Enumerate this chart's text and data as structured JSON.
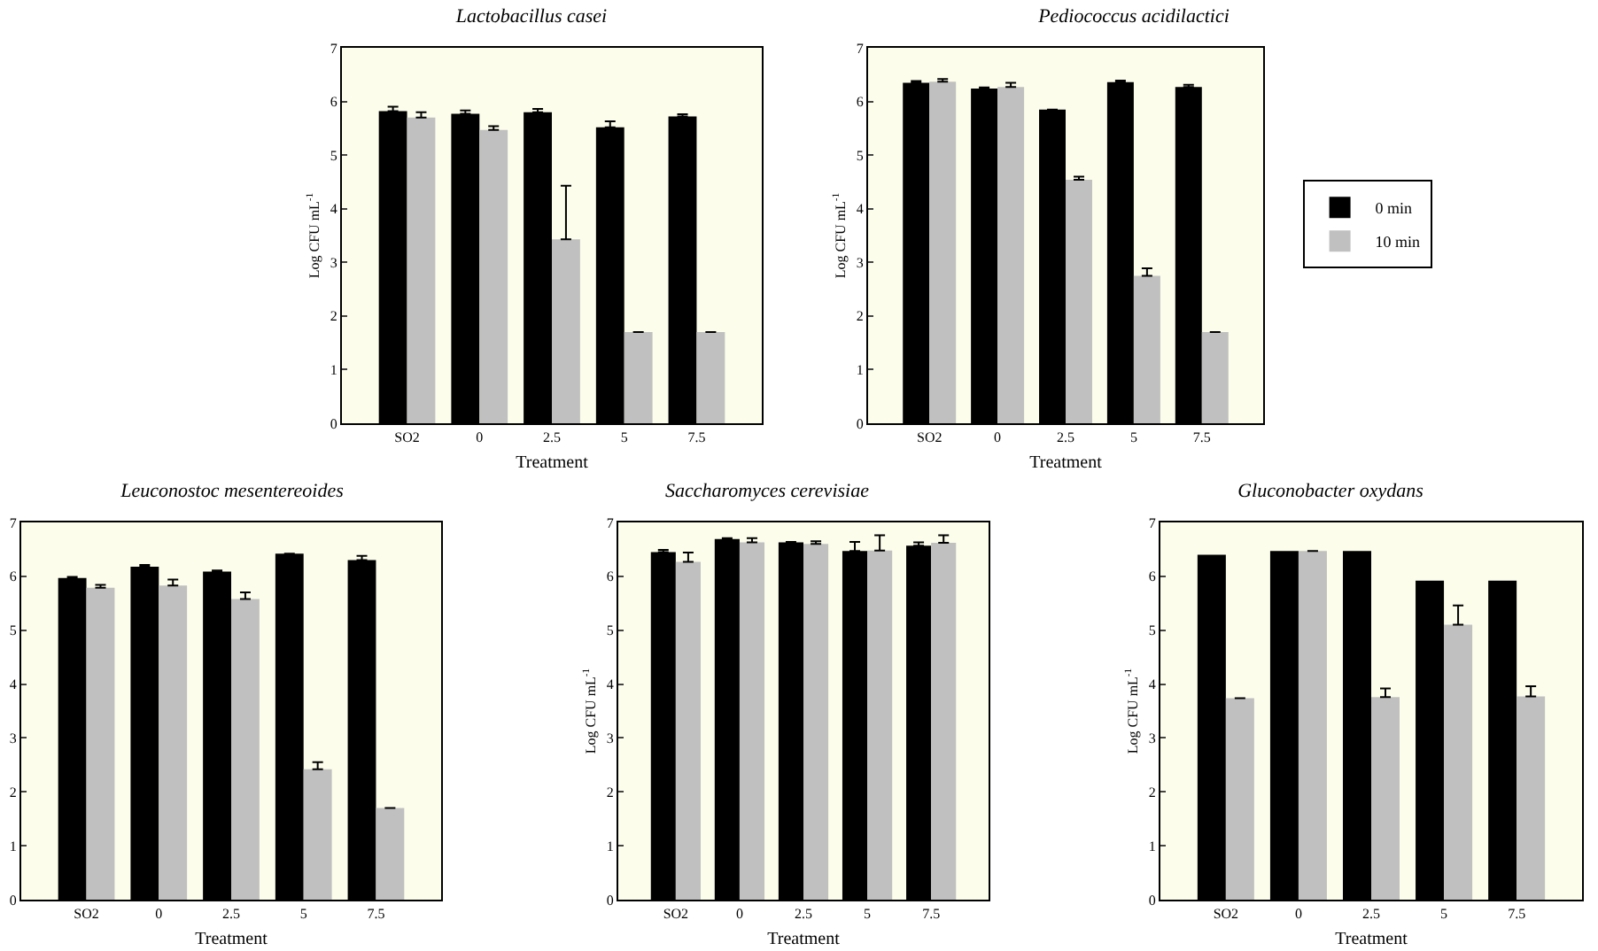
{
  "chart_data": [
    {
      "type": "bar",
      "title": "Lactobacillus casei",
      "xlabel": "Treatment",
      "ylabel": "Log CFU mL$^{-1}$",
      "categories": [
        "SO2",
        "0",
        "2.5",
        "5",
        "7.5"
      ],
      "ylim": [
        0,
        7
      ],
      "yticks": [
        0,
        1,
        2,
        3,
        4,
        5,
        6,
        7
      ],
      "legend": false,
      "series": [
        {
          "color": "#000000",
          "values": [
            5.82,
            5.77,
            5.8,
            5.52,
            5.72
          ],
          "errors": [
            [
              5.82,
              5.9
            ],
            [
              5.77,
              5.83
            ],
            [
              5.8,
              5.86
            ],
            [
              5.52,
              5.63
            ],
            [
              5.72,
              5.76
            ]
          ]
        },
        {
          "color": "#c0c0c0",
          "values": [
            5.7,
            5.47,
            3.43,
            1.7,
            1.7
          ],
          "errors": [
            [
              5.7,
              5.8
            ],
            [
              5.47,
              5.54
            ],
            [
              3.43,
              4.43
            ],
            null,
            null
          ]
        }
      ]
    },
    {
      "type": "bar",
      "title": "Pediococcus acidilactici",
      "xlabel": "Treatment",
      "ylabel": "Log CFU mL$^{-1}$",
      "categories": [
        "SO2",
        "0",
        "2.5",
        "5",
        "7.5"
      ],
      "ylim": [
        0,
        7
      ],
      "yticks": [
        0,
        1,
        2,
        3,
        4,
        5,
        6,
        7
      ],
      "legend": "right",
      "series": [
        {
          "name": "0 min",
          "color": "#000000",
          "values": [
            6.35,
            6.24,
            5.85,
            6.36,
            6.27
          ],
          "errors": [
            [
              6.35,
              6.38
            ],
            [
              6.24,
              6.26
            ],
            null,
            [
              6.36,
              6.39
            ],
            [
              6.27,
              6.31
            ]
          ]
        },
        {
          "name": "10 min",
          "color": "#c0c0c0",
          "values": [
            6.37,
            6.27,
            4.54,
            2.75,
            1.7
          ],
          "errors": [
            [
              6.37,
              6.42
            ],
            [
              6.27,
              6.35
            ],
            [
              4.54,
              4.6
            ],
            [
              2.75,
              2.89
            ],
            null
          ]
        }
      ]
    },
    {
      "type": "bar",
      "title": "Leuconostoc mesentereoides",
      "xlabel": "Treatment",
      "categories": [
        "SO2",
        "0",
        "2.5",
        "5",
        "7.5"
      ],
      "ylim": [
        0,
        7
      ],
      "yticks": [
        0,
        1,
        2,
        3,
        4,
        5,
        6,
        7
      ],
      "legend": false,
      "series": [
        {
          "color": "#000000",
          "values": [
            5.97,
            6.18,
            6.09,
            6.42,
            6.3
          ],
          "errors": [
            [
              5.97,
              5.99
            ],
            [
              6.18,
              6.21
            ],
            [
              6.09,
              6.11
            ],
            null,
            [
              6.3,
              6.38
            ]
          ]
        },
        {
          "color": "#c0c0c0",
          "values": [
            5.79,
            5.83,
            5.58,
            2.42,
            1.7
          ],
          "errors": [
            [
              5.79,
              5.84
            ],
            [
              5.83,
              5.94
            ],
            [
              5.58,
              5.7
            ],
            [
              2.42,
              2.55
            ],
            null
          ]
        }
      ]
    },
    {
      "type": "bar",
      "title": "Saccharomyces cerevisiae",
      "xlabel": "Treatment",
      "ylabel": "Log CFU mL$^{-1}$",
      "categories": [
        "SO2",
        "0",
        "2.5",
        "5",
        "7.5"
      ],
      "ylim": [
        0,
        7
      ],
      "yticks": [
        0,
        1,
        2,
        3,
        4,
        5,
        6,
        7
      ],
      "legend": false,
      "series": [
        {
          "color": "#000000",
          "values": [
            6.45,
            6.69,
            6.63,
            6.47,
            6.57
          ],
          "errors": [
            [
              6.45,
              6.49
            ],
            [
              6.69,
              6.71
            ],
            [
              6.63,
              6.64
            ],
            [
              6.47,
              6.64
            ],
            [
              6.57,
              6.63
            ]
          ]
        },
        {
          "color": "#c0c0c0",
          "values": [
            6.27,
            6.63,
            6.6,
            6.48,
            6.62
          ],
          "errors": [
            [
              6.27,
              6.44
            ],
            [
              6.63,
              6.71
            ],
            [
              6.6,
              6.65
            ],
            [
              6.48,
              6.76
            ],
            [
              6.62,
              6.76
            ]
          ]
        }
      ]
    },
    {
      "type": "bar",
      "title": "Gluconobacter oxydans",
      "xlabel": "Treatment",
      "ylabel": "Log CFU mL$^{-1}$",
      "categories": [
        "SO2",
        "0",
        "2.5",
        "5",
        "7.5"
      ],
      "ylim": [
        0,
        7
      ],
      "yticks": [
        0,
        1,
        2,
        3,
        4,
        5,
        6,
        7
      ],
      "legend": false,
      "series": [
        {
          "color": "#000000",
          "values": [
            6.4,
            6.47,
            6.47,
            5.92,
            5.92
          ]
        },
        {
          "color": "#c0c0c0",
          "values": [
            3.74,
            6.47,
            3.76,
            5.1,
            3.77
          ],
          "errors": [
            null,
            null,
            [
              3.76,
              3.92
            ],
            [
              5.1,
              5.46
            ],
            [
              3.77,
              3.96
            ]
          ]
        }
      ]
    }
  ]
}
